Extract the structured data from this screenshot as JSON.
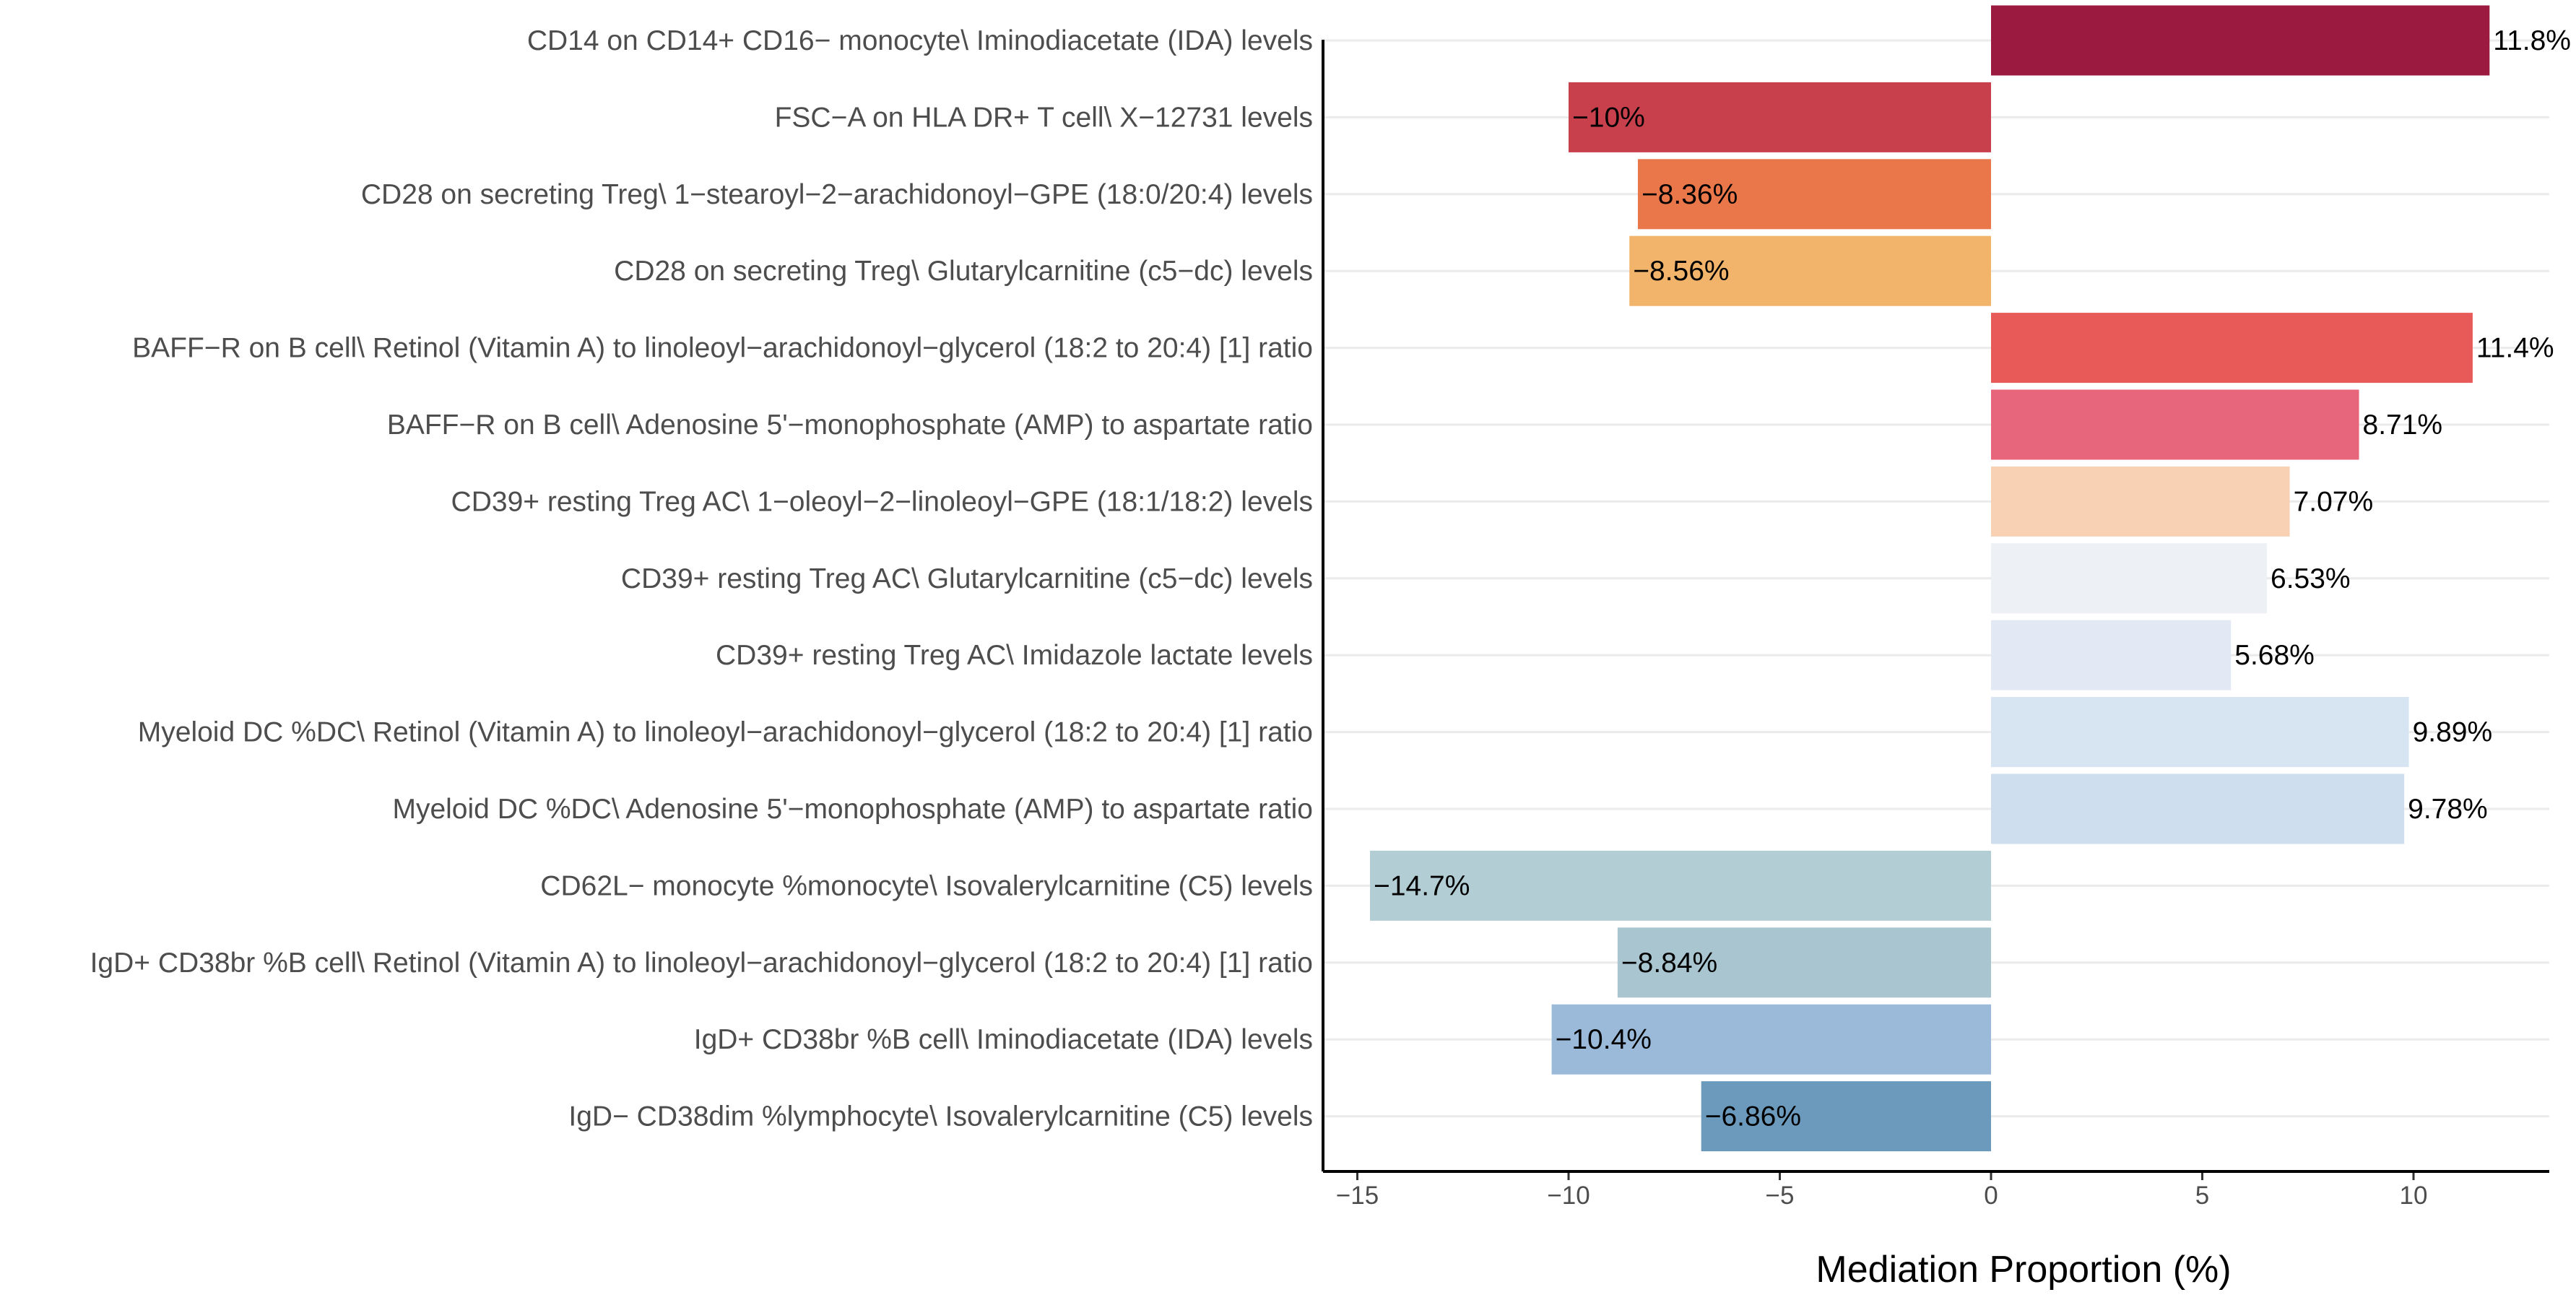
{
  "chart_data": {
    "type": "bar",
    "orientation": "horizontal",
    "title": "",
    "xlabel": "Mediation Proportion (%)",
    "ylabel": "",
    "xlim": [
      -16.5,
      13.2
    ],
    "xticks": [
      -15,
      -10,
      -5,
      0,
      5,
      10
    ],
    "xtick_labels": [
      "−15",
      "−10",
      "−5",
      "0",
      "5",
      "10"
    ],
    "grid": true,
    "categories": [
      "CD14 on CD14+ CD16− monocyte\\ Iminodiacetate (IDA) levels",
      "FSC−A on HLA DR+ T cell\\ X−12731 levels",
      "CD28 on secreting Treg\\ 1−stearoyl−2−arachidonoyl−GPE (18:0/20:4) levels",
      "CD28 on secreting Treg\\ Glutarylcarnitine (c5−dc) levels",
      "BAFF−R on B cell\\ Retinol (Vitamin A) to linoleoyl−arachidonoyl−glycerol (18:2 to 20:4) [1] ratio",
      "BAFF−R on B cell\\ Adenosine 5'−monophosphate (AMP) to aspartate ratio",
      "CD39+ resting Treg AC\\ 1−oleoyl−2−linoleoyl−GPE (18:1/18:2) levels",
      "CD39+ resting Treg AC\\ Glutarylcarnitine (c5−dc) levels",
      "CD39+ resting Treg AC\\ Imidazole lactate levels",
      "Myeloid DC %DC\\ Retinol (Vitamin A) to linoleoyl−arachidonoyl−glycerol (18:2 to 20:4) [1] ratio",
      "Myeloid DC %DC\\ Adenosine 5'−monophosphate (AMP) to aspartate ratio",
      "CD62L− monocyte %monocyte\\ Isovalerylcarnitine (C5) levels",
      "IgD+ CD38br %B cell\\ Retinol (Vitamin A) to linoleoyl−arachidonoyl−glycerol (18:2 to 20:4) [1] ratio",
      "IgD+ CD38br %B cell\\ Iminodiacetate (IDA) levels",
      "IgD− CD38dim %lymphocyte\\ Isovalerylcarnitine (C5) levels"
    ],
    "values": [
      11.8,
      -10,
      -8.36,
      -8.56,
      11.4,
      8.71,
      7.07,
      6.53,
      5.68,
      9.89,
      9.78,
      -14.7,
      -8.84,
      -10.4,
      -6.86
    ],
    "value_labels": [
      "11.8%",
      "−10%",
      "−8.36%",
      "−8.56%",
      "11.4%",
      "8.71%",
      "7.07%",
      "6.53%",
      "5.68%",
      "9.89%",
      "9.78%",
      "−14.7%",
      "−8.84%",
      "−10.4%",
      "−6.86%"
    ],
    "colors": [
      "#9a1b3f",
      "#c9404d",
      "#e9774a",
      "#f1b46a",
      "#e85a58",
      "#e8667c",
      "#f8d1b4",
      "#edf1f5",
      "#e2e9f4",
      "#d7e5f3",
      "#cfdeee",
      "#b3cdd4",
      "#a9c5d0",
      "#9bbad9",
      "#6b9abd"
    ]
  }
}
